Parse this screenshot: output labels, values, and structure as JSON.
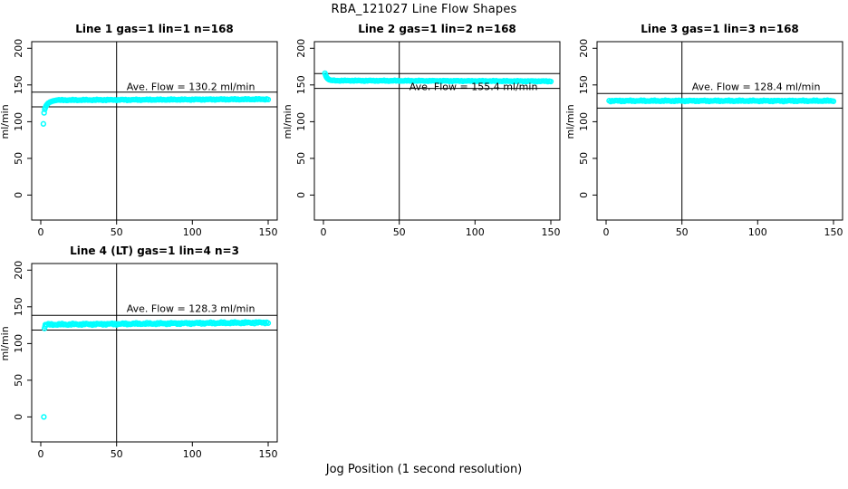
{
  "figure": {
    "title": "RBA_121027  Line Flow Shapes",
    "xlabel": "Jog Position (1 second resolution)",
    "colors": {
      "points": "#00ffff",
      "axis": "#000000",
      "background": "#ffffff"
    }
  },
  "chart_data": [
    {
      "type": "scatter",
      "title": "Line 1 gas=1 lin=1 n=168",
      "ylabel": "ml/min",
      "annotation": "Ave. Flow =  130.2  ml/min",
      "ave_flow": 130.2,
      "units": "ml/min",
      "annotation_xy": [
        99,
        148
      ],
      "x_ticks": [
        0,
        50,
        100,
        150
      ],
      "y_ticks": [
        0,
        50,
        100,
        150,
        200
      ],
      "xlim": [
        -6,
        156
      ],
      "ylim": [
        -34,
        209
      ],
      "vline_x": 50,
      "ref_lines": [
        120.2,
        140.2
      ],
      "series": {
        "transient": [
          [
            1.7,
            97
          ],
          [
            2.2,
            112
          ],
          [
            2.6,
            117
          ],
          [
            3,
            119.5
          ],
          [
            3.5,
            121.5
          ],
          [
            4,
            123
          ],
          [
            4.5,
            124.3
          ],
          [
            5,
            125.3
          ],
          [
            6,
            126.6
          ],
          [
            7,
            127.5
          ],
          [
            8,
            128.2
          ],
          [
            9,
            128.7
          ],
          [
            10,
            129.1
          ]
        ],
        "plateaus": [
          {
            "x_from": 11,
            "x_to": 150,
            "x_step": 1,
            "y_start": 129.4,
            "y_end": 130.6,
            "noise": 0.75
          }
        ]
      }
    },
    {
      "type": "scatter",
      "title": "Line 2 gas=1 lin=2 n=168",
      "ylabel": "ml/min",
      "annotation": "Ave. Flow =  155.4  ml/min",
      "ave_flow": 155.4,
      "units": "ml/min",
      "annotation_xy": [
        99,
        148
      ],
      "x_ticks": [
        0,
        50,
        100,
        150
      ],
      "y_ticks": [
        0,
        50,
        100,
        150,
        200
      ],
      "xlim": [
        -6,
        156
      ],
      "ylim": [
        -34,
        209
      ],
      "vline_x": 50,
      "ref_lines": [
        145.4,
        165.4
      ],
      "series": {
        "transient": [
          [
            1,
            166
          ],
          [
            1.4,
            163.5
          ],
          [
            1.8,
            161.5
          ],
          [
            2.2,
            160
          ],
          [
            2.6,
            159
          ],
          [
            3,
            158.2
          ],
          [
            3.5,
            157.6
          ],
          [
            4,
            157.1
          ],
          [
            5,
            156.5
          ],
          [
            6,
            156.2
          ]
        ],
        "plateaus": [
          {
            "x_from": 7,
            "x_to": 150,
            "x_step": 1,
            "y_start": 156,
            "y_end": 155.1,
            "noise": 0.6
          }
        ]
      }
    },
    {
      "type": "scatter",
      "title": "Line 3 gas=1 lin=3 n=168",
      "ylabel": "ml/min",
      "annotation": "Ave. Flow =  128.4  ml/min",
      "ave_flow": 128.4,
      "units": "ml/min",
      "annotation_xy": [
        99,
        148
      ],
      "x_ticks": [
        0,
        50,
        100,
        150
      ],
      "y_ticks": [
        0,
        50,
        100,
        150,
        200
      ],
      "xlim": [
        -6,
        156
      ],
      "ylim": [
        -34,
        209
      ],
      "vline_x": 50,
      "ref_lines": [
        118.4,
        138.4
      ],
      "series": {
        "transient": [],
        "plateaus": [
          {
            "x_from": 2,
            "x_to": 150,
            "x_step": 1,
            "y_start": 128.4,
            "y_end": 128.4,
            "noise": 0.9
          }
        ]
      }
    },
    {
      "type": "scatter",
      "title": "Line 4 (LT) gas=1 lin=4 n=3",
      "ylabel": "ml/min",
      "annotation": "Ave. Flow =  128.3  ml/min",
      "ave_flow": 128.3,
      "units": "ml/min",
      "annotation_xy": [
        99,
        148
      ],
      "x_ticks": [
        0,
        50,
        100,
        150
      ],
      "y_ticks": [
        0,
        50,
        100,
        150,
        200
      ],
      "xlim": [
        -6,
        156
      ],
      "ylim": [
        -34,
        209
      ],
      "vline_x": 50,
      "ref_lines": [
        118.3,
        138.3
      ],
      "series": {
        "transient": [
          [
            2,
            0
          ],
          [
            2.4,
            120.5
          ],
          [
            2.8,
            123.5
          ]
        ],
        "plateaus": [
          {
            "x_from": 3,
            "x_to": 150,
            "x_step": 1,
            "y_start": 125.8,
            "y_end": 128.6,
            "noise": 1.3
          }
        ]
      }
    }
  ]
}
